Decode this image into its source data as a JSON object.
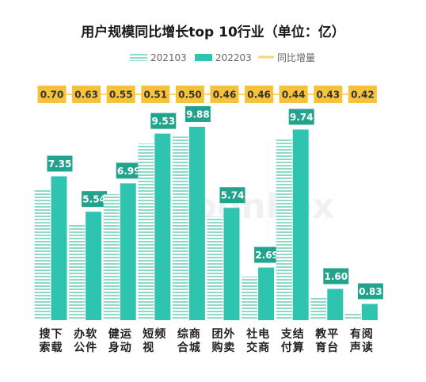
{
  "chart_data": {
    "type": "bar",
    "title": "用户规模同比增长top 10行业（单位：亿）",
    "categories": [
      "搜索下载",
      "办公软件",
      "健身运动",
      "短视频",
      "综合商城",
      "团购外卖",
      "社交电商",
      "支付结算",
      "教育平台",
      "有声阅读"
    ],
    "series": [
      {
        "name": "202103",
        "values": [
          6.65,
          4.91,
          6.44,
          9.02,
          9.38,
          5.28,
          2.23,
          9.3,
          1.17,
          0.41
        ]
      },
      {
        "name": "202203",
        "values": [
          7.35,
          5.54,
          6.99,
          9.53,
          9.88,
          5.74,
          2.69,
          9.74,
          1.6,
          0.83
        ]
      }
    ],
    "line_series": {
      "name": "同比增量",
      "values": [
        0.7,
        0.63,
        0.55,
        0.51,
        0.5,
        0.46,
        0.46,
        0.44,
        0.43,
        0.42
      ]
    },
    "data_labels_202203": [
      "7.35",
      "5.54",
      "6.99",
      "9.53",
      "9.88",
      "5.74",
      "2.69",
      "9.74",
      "1.60",
      "0.83"
    ],
    "yoy_labels": [
      "0.70",
      "0.63",
      "0.55",
      "0.51",
      "0.50",
      "0.46",
      "0.46",
      "0.44",
      "0.43",
      "0.42"
    ],
    "legend_placement": "top-center",
    "grid": false,
    "colors": {
      "s2021": "#8fd9c9",
      "s2022": "#2ec4b0",
      "line": "#f7d47a",
      "yoy_box": "#f5c33b",
      "label_box": "#21a38e"
    },
    "watermark": "MoonFox"
  }
}
